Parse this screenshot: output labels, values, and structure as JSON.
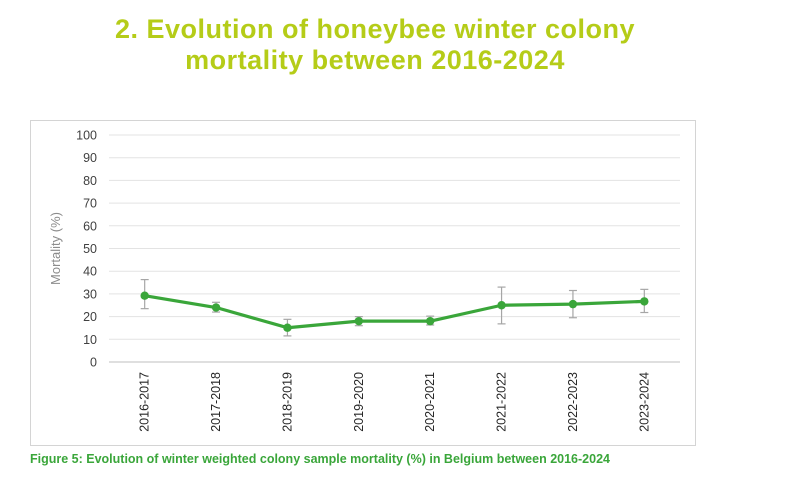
{
  "heading": {
    "line1": "2. Evolution of honeybee winter colony",
    "line2": "mortality between 2016-2024"
  },
  "caption": "Figure 5: Evolution of winter weighted colony sample mortality (%) in Belgium between 2016-2024",
  "colors": {
    "heading": "#b5cc18",
    "series": "#3aa63a",
    "caption": "#3aa63a",
    "error_bar": "#a6a6a6"
  },
  "chart_data": {
    "type": "line",
    "title": "",
    "xlabel": "",
    "ylabel": "Mortality (%)",
    "ylim": [
      0,
      100
    ],
    "yticks": [
      0,
      10,
      20,
      30,
      40,
      50,
      60,
      70,
      80,
      90,
      100
    ],
    "grid": true,
    "legend": "none",
    "categories": [
      "2016-2017",
      "2017-2018",
      "2018-2019",
      "2019-2020",
      "2020-2021",
      "2021-2022",
      "2022-2023",
      "2023-2024"
    ],
    "series": [
      {
        "values": [
          29.2,
          24.0,
          15.1,
          18.0,
          18.0,
          25.0,
          25.5,
          26.7
        ],
        "error_low": [
          23.5,
          22.0,
          11.5,
          16.0,
          16.3,
          16.8,
          19.5,
          21.8
        ],
        "error_high": [
          36.3,
          26.3,
          18.8,
          20.0,
          20.2,
          33.0,
          31.5,
          32.0
        ]
      }
    ]
  }
}
